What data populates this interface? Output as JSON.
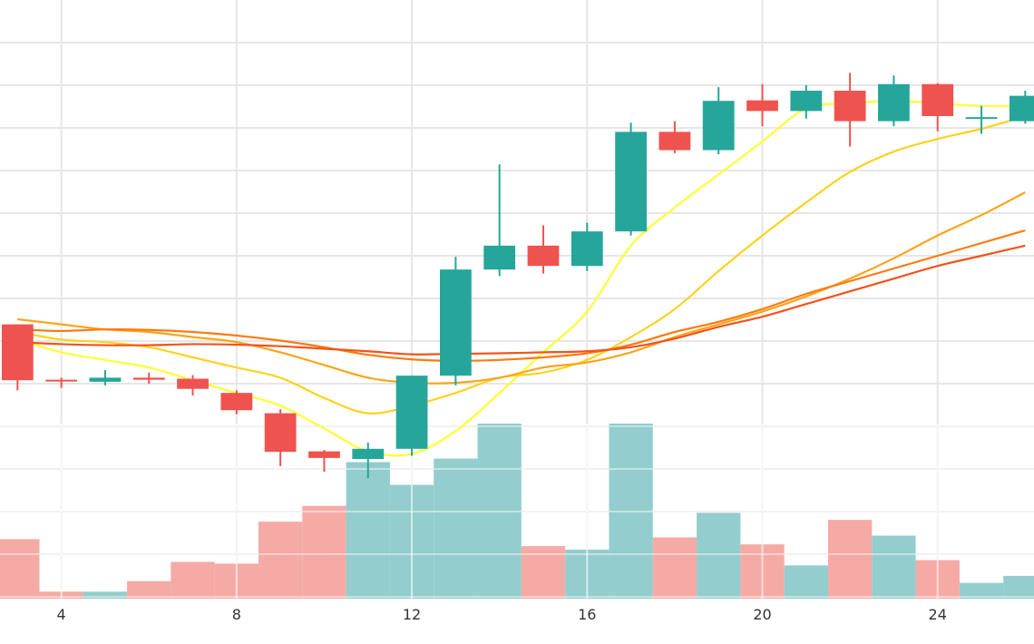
{
  "chart_data": {
    "type": "candlestick",
    "title": "",
    "xlabel": "",
    "ylabel": "",
    "x_ticks": [
      4,
      8,
      12,
      16,
      20,
      24
    ],
    "xlim": [
      2.6,
      26.2
    ],
    "price_ylim": [
      0,
      100
    ],
    "volume_ylim": [
      0,
      100
    ],
    "grid": true,
    "legend": "none",
    "colors": {
      "up": "#26a69a",
      "down": "#ef5350",
      "volume_up": "#93cdcd",
      "volume_down": "#f5aaa6",
      "grid": "#e6e6e6",
      "ma_lines": [
        "#ffff33",
        "#ffd21e",
        "#ffa31a",
        "#ff7a10",
        "#f2531a"
      ]
    },
    "candles": [
      {
        "x": 3,
        "open": 41.5,
        "high": 41.5,
        "low": 28.5,
        "close": 30.5
      },
      {
        "x": 4,
        "open": 30.6,
        "high": 31.0,
        "low": 29.0,
        "close": 30.4
      },
      {
        "x": 5,
        "open": 30.2,
        "high": 32.5,
        "low": 29.5,
        "close": 31.0
      },
      {
        "x": 6,
        "open": 31.0,
        "high": 32.0,
        "low": 29.8,
        "close": 30.6
      },
      {
        "x": 7,
        "open": 30.8,
        "high": 31.5,
        "low": 27.5,
        "close": 28.8
      },
      {
        "x": 8,
        "open": 28.0,
        "high": 28.5,
        "low": 23.8,
        "close": 24.6
      },
      {
        "x": 9,
        "open": 24.0,
        "high": 24.8,
        "low": 13.6,
        "close": 16.4
      },
      {
        "x": 10,
        "open": 16.5,
        "high": 16.8,
        "low": 12.5,
        "close": 15.2
      },
      {
        "x": 11,
        "open": 15.0,
        "high": 18.2,
        "low": 11.2,
        "close": 17.0
      },
      {
        "x": 12,
        "open": 17.0,
        "high": 31.4,
        "low": 15.6,
        "close": 31.4
      },
      {
        "x": 13,
        "open": 31.4,
        "high": 54.8,
        "low": 29.5,
        "close": 52.3
      },
      {
        "x": 14,
        "open": 52.3,
        "high": 73.0,
        "low": 51.0,
        "close": 57.0
      },
      {
        "x": 15,
        "open": 57.0,
        "high": 61.0,
        "low": 51.5,
        "close": 53.0
      },
      {
        "x": 16,
        "open": 53.0,
        "high": 61.5,
        "low": 52.0,
        "close": 59.8
      },
      {
        "x": 17,
        "open": 59.8,
        "high": 81.2,
        "low": 59.0,
        "close": 79.4
      },
      {
        "x": 18,
        "open": 79.4,
        "high": 81.5,
        "low": 75.2,
        "close": 75.8
      },
      {
        "x": 19,
        "open": 75.8,
        "high": 88.2,
        "low": 75.0,
        "close": 85.5
      },
      {
        "x": 20,
        "open": 85.6,
        "high": 88.8,
        "low": 80.5,
        "close": 83.5
      },
      {
        "x": 21,
        "open": 83.5,
        "high": 88.6,
        "low": 82.0,
        "close": 87.5
      },
      {
        "x": 22,
        "open": 87.5,
        "high": 91.0,
        "low": 76.5,
        "close": 81.5
      },
      {
        "x": 23,
        "open": 81.5,
        "high": 90.5,
        "low": 80.5,
        "close": 88.8
      },
      {
        "x": 24,
        "open": 88.8,
        "high": 89.0,
        "low": 79.5,
        "close": 82.5
      },
      {
        "x": 25,
        "open": 82.0,
        "high": 84.5,
        "low": 79.0,
        "close": 82.3
      },
      {
        "x": 26,
        "open": 81.5,
        "high": 87.5,
        "low": 81.0,
        "close": 86.5
      }
    ],
    "volume": [
      {
        "x": 3,
        "value": 34,
        "direction": "down"
      },
      {
        "x": 4,
        "value": 4,
        "direction": "down"
      },
      {
        "x": 5,
        "value": 4,
        "direction": "up"
      },
      {
        "x": 6,
        "value": 10,
        "direction": "down"
      },
      {
        "x": 7,
        "value": 21,
        "direction": "down"
      },
      {
        "x": 8,
        "value": 20,
        "direction": "down"
      },
      {
        "x": 9,
        "value": 44,
        "direction": "down"
      },
      {
        "x": 10,
        "value": 53,
        "direction": "down"
      },
      {
        "x": 11,
        "value": 78,
        "direction": "up"
      },
      {
        "x": 12,
        "value": 65,
        "direction": "up"
      },
      {
        "x": 13,
        "value": 80,
        "direction": "up"
      },
      {
        "x": 14,
        "value": 100,
        "direction": "up"
      },
      {
        "x": 15,
        "value": 30,
        "direction": "down"
      },
      {
        "x": 16,
        "value": 28,
        "direction": "up"
      },
      {
        "x": 17,
        "value": 100,
        "direction": "up"
      },
      {
        "x": 18,
        "value": 35,
        "direction": "down"
      },
      {
        "x": 19,
        "value": 49,
        "direction": "up"
      },
      {
        "x": 20,
        "value": 31,
        "direction": "down"
      },
      {
        "x": 21,
        "value": 19,
        "direction": "up"
      },
      {
        "x": 22,
        "value": 45,
        "direction": "down"
      },
      {
        "x": 23,
        "value": 36,
        "direction": "up"
      },
      {
        "x": 24,
        "value": 22,
        "direction": "down"
      },
      {
        "x": 25,
        "value": 9,
        "direction": "up"
      },
      {
        "x": 26,
        "value": 13,
        "direction": "up"
      }
    ],
    "moving_averages": [
      {
        "x": [
          3,
          4,
          5,
          6,
          7,
          8,
          9,
          10,
          11,
          12,
          13,
          14,
          15,
          16,
          17,
          18,
          19,
          20,
          21,
          22,
          23,
          24,
          25,
          26
        ],
        "y": [
          38.5,
          36.0,
          34.5,
          33.0,
          30.5,
          28.0,
          25.5,
          21.0,
          16.5,
          16.0,
          20.5,
          28.0,
          36.0,
          44.0,
          57.0,
          64.5,
          71.0,
          77.5,
          84.0,
          85.0,
          85.5,
          85.0,
          84.5,
          84.5
        ]
      },
      {
        "x": [
          3,
          4,
          5,
          6,
          7,
          8,
          9,
          10,
          11,
          12,
          13,
          14,
          15,
          16,
          17,
          18,
          19,
          20,
          21,
          22,
          23,
          24,
          25,
          26
        ],
        "y": [
          40.0,
          38.5,
          38.0,
          37.0,
          35.0,
          33.0,
          31.0,
          27.0,
          24.0,
          25.5,
          28.0,
          31.0,
          32.0,
          34.5,
          39.0,
          44.5,
          52.0,
          59.0,
          65.5,
          71.5,
          75.5,
          78.0,
          80.0,
          82.5
        ]
      },
      {
        "x": [
          3,
          4,
          5,
          6,
          7,
          8,
          9,
          10,
          11,
          12,
          13,
          14,
          15,
          16,
          17,
          18,
          19,
          20,
          21,
          22,
          23,
          24,
          25,
          26
        ],
        "y": [
          42.5,
          41.5,
          40.5,
          40.0,
          39.0,
          38.0,
          36.0,
          33.5,
          31.0,
          30.0,
          30.0,
          31.0,
          33.0,
          34.0,
          36.0,
          39.0,
          41.5,
          44.0,
          47.0,
          50.5,
          54.5,
          59.0,
          63.0,
          67.5
        ]
      },
      {
        "x": [
          3,
          4,
          5,
          6,
          7,
          8,
          9,
          10,
          11,
          12,
          13,
          14,
          15,
          16,
          17,
          18,
          19,
          20,
          21,
          22,
          23,
          24,
          25,
          26
        ],
        "y": [
          40.5,
          40.2,
          40.5,
          40.4,
          40.0,
          39.3,
          38.3,
          37.0,
          35.5,
          34.6,
          34.3,
          34.5,
          35.0,
          35.8,
          37.5,
          40.0,
          42.0,
          44.5,
          47.5,
          50.0,
          52.5,
          55.0,
          57.5,
          60.0
        ]
      },
      {
        "x": [
          3,
          4,
          5,
          6,
          7,
          8,
          9,
          10,
          11,
          12,
          13,
          14,
          15,
          16,
          17,
          18,
          19,
          20,
          21,
          22,
          23,
          24,
          25,
          26
        ],
        "y": [
          38.0,
          37.6,
          37.4,
          37.4,
          37.6,
          37.5,
          37.2,
          36.7,
          36.2,
          35.6,
          35.7,
          35.8,
          36.0,
          36.2,
          37.0,
          38.7,
          41.0,
          43.0,
          45.5,
          48.0,
          50.5,
          53.0,
          55.0,
          57.0
        ]
      }
    ]
  }
}
